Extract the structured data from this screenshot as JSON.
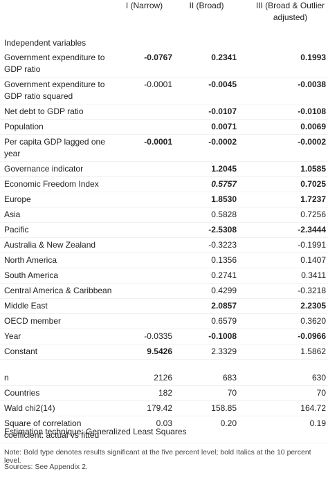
{
  "table": {
    "columns": [
      "I (Narrow)",
      "II (Broad)",
      "III (Broad & Outlier adjusted)"
    ],
    "section": "Independent variables",
    "rows": [
      {
        "label": "Government expenditure to GDP ratio",
        "cells": [
          {
            "text": "-0.0767",
            "style": "bold"
          },
          {
            "text": "0.2341",
            "style": "bold"
          },
          {
            "text": "0.1993",
            "style": "bold"
          }
        ]
      },
      {
        "label": "Government expenditure to GDP ratio squared",
        "cells": [
          {
            "text": "-0.0001",
            "style": "plain"
          },
          {
            "text": "-0.0045",
            "style": "bold"
          },
          {
            "text": "-0.0038",
            "style": "bold"
          }
        ]
      },
      {
        "label": "Net debt to GDP ratio",
        "cells": [
          null,
          {
            "text": "-0.0107",
            "style": "bold"
          },
          {
            "text": "-0.0108",
            "style": "bold"
          }
        ]
      },
      {
        "label": "Population",
        "cells": [
          null,
          {
            "text": "0.0071",
            "style": "bold"
          },
          {
            "text": "0.0069",
            "style": "bold"
          }
        ]
      },
      {
        "label": "Per capita GDP lagged one year",
        "cells": [
          {
            "text": "-0.0001",
            "style": "bold"
          },
          {
            "text": "-0.0002",
            "style": "bold"
          },
          {
            "text": "-0.0002",
            "style": "bold"
          }
        ]
      },
      {
        "label": "Governance indicator",
        "cells": [
          null,
          {
            "text": "1.2045",
            "style": "bold"
          },
          {
            "text": "1.0585",
            "style": "bold"
          }
        ]
      },
      {
        "label": "Economic Freedom Index",
        "cells": [
          null,
          {
            "text": "0.5757",
            "style": "bold-italic"
          },
          {
            "text": "0.7025",
            "style": "bold"
          }
        ]
      },
      {
        "label": "Europe",
        "cells": [
          null,
          {
            "text": "1.8530",
            "style": "bold"
          },
          {
            "text": "1.7237",
            "style": "bold"
          }
        ]
      },
      {
        "label": "Asia",
        "cells": [
          null,
          {
            "text": "0.5828",
            "style": "plain"
          },
          {
            "text": "0.7256",
            "style": "plain"
          }
        ]
      },
      {
        "label": "Pacific",
        "cells": [
          null,
          {
            "text": "-2.5308",
            "style": "bold"
          },
          {
            "text": "-2.3444",
            "style": "bold"
          }
        ]
      },
      {
        "label": "Australia & New Zealand",
        "cells": [
          null,
          {
            "text": "-0.3223",
            "style": "plain"
          },
          {
            "text": "-0.1991",
            "style": "plain"
          }
        ]
      },
      {
        "label": "North America",
        "cells": [
          null,
          {
            "text": "0.1356",
            "style": "plain"
          },
          {
            "text": "0.1407",
            "style": "plain"
          }
        ]
      },
      {
        "label": "South America",
        "cells": [
          null,
          {
            "text": "0.2741",
            "style": "plain"
          },
          {
            "text": "0.3411",
            "style": "plain"
          }
        ]
      },
      {
        "label": "Central America & Caribbean",
        "cells": [
          null,
          {
            "text": "0.4299",
            "style": "plain"
          },
          {
            "text": "-0.3218",
            "style": "plain"
          }
        ]
      },
      {
        "label": "Middle East",
        "cells": [
          null,
          {
            "text": "2.0857",
            "style": "bold"
          },
          {
            "text": "2.2305",
            "style": "bold"
          }
        ]
      },
      {
        "label": "OECD member",
        "cells": [
          null,
          {
            "text": "0.6579",
            "style": "plain"
          },
          {
            "text": "0.3620",
            "style": "plain"
          }
        ]
      },
      {
        "label": "Year",
        "cells": [
          {
            "text": "-0.0335",
            "style": "plain"
          },
          {
            "text": "-0.1008",
            "style": "bold"
          },
          {
            "text": "-0.0966",
            "style": "bold"
          }
        ]
      },
      {
        "label": "Constant",
        "cells": [
          {
            "text": "9.5426",
            "style": "bold"
          },
          {
            "text": "2.3329",
            "style": "plain"
          },
          {
            "text": "1.5862",
            "style": "plain"
          }
        ]
      }
    ],
    "stats": [
      {
        "label": "n",
        "cells": [
          {
            "text": "2126",
            "style": "plain"
          },
          {
            "text": "683",
            "style": "plain"
          },
          {
            "text": "630",
            "style": "plain"
          }
        ]
      },
      {
        "label": "Countries",
        "cells": [
          {
            "text": "182",
            "style": "plain"
          },
          {
            "text": "70",
            "style": "plain"
          },
          {
            "text": "70",
            "style": "plain"
          }
        ]
      },
      {
        "label": "Wald chi2(14)",
        "cells": [
          {
            "text": "179.42",
            "style": "plain"
          },
          {
            "text": "158.85",
            "style": "plain"
          },
          {
            "text": "164.72",
            "style": "plain"
          }
        ]
      },
      {
        "label": "Square of correlation coefficient: actual vs fitted",
        "cells": [
          {
            "text": "0.03",
            "style": "plain"
          },
          {
            "text": "0.20",
            "style": "plain"
          },
          {
            "text": "0.19",
            "style": "plain"
          }
        ]
      }
    ]
  },
  "footer": {
    "technique": "Estimation technique: Generalized Least Squares",
    "note": "Note: Bold type denotes results significant at the five percent level; bold Italics at the 10 percent level.",
    "sources": "Sources: See Appendix 2."
  }
}
